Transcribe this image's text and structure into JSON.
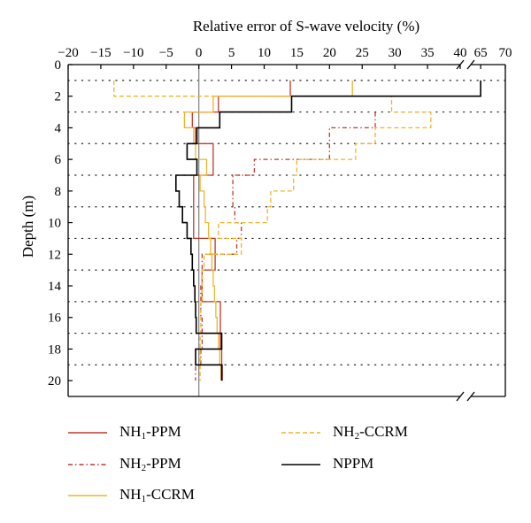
{
  "chart_data": {
    "type": "line",
    "xlabel": "Relative error of S-wave velocity (%)",
    "ylabel": "Depth (m)",
    "x_ticks_main": [
      -20,
      -15,
      -10,
      -5,
      0,
      5,
      10,
      15,
      20,
      25,
      30,
      35,
      40
    ],
    "x_ticks_break": [
      65,
      70
    ],
    "x_range_main": [
      -20,
      40
    ],
    "x_range_break": [
      63,
      70
    ],
    "y_ticks": [
      0,
      2,
      4,
      6,
      8,
      10,
      12,
      14,
      16,
      18,
      20
    ],
    "ylim": [
      0,
      21
    ],
    "vertical_reference_x": 0,
    "grid": "dotted horizontal lines at odd depths",
    "axis_break": "x-axis break between 40 and 63",
    "series": [
      {
        "name_main": "NH",
        "name_sub": "1",
        "name_tail": "-PPM",
        "color": "#c0392b",
        "dash": "solid",
        "depth_edges": [
          1,
          2,
          3,
          4,
          5,
          6,
          7,
          8,
          9,
          10,
          11,
          12,
          13,
          14,
          15,
          16,
          17,
          18,
          19,
          20
        ],
        "values": [
          14,
          3,
          -1,
          -0.5,
          2.2,
          2.2,
          -0.8,
          -0.8,
          -0.8,
          -0.8,
          2.5,
          2.5,
          0.5,
          0.5,
          3.3,
          3.3,
          3.3,
          3.5,
          3.6
        ]
      },
      {
        "name_main": "NH",
        "name_sub": "2",
        "name_tail": "-PPM",
        "color": "#c0392b",
        "dash": "dashdot",
        "depth_edges": [
          3,
          4,
          5,
          6,
          7,
          8,
          9,
          10,
          11,
          12,
          13,
          14,
          15,
          16,
          17,
          18,
          19,
          20
        ],
        "values": [
          27,
          20,
          20,
          8.5,
          5.2,
          5.2,
          5.5,
          6.5,
          5.8,
          0.5,
          0.5,
          0.3,
          0.3,
          0.5,
          0.5,
          0.3,
          -0.5
        ]
      },
      {
        "name_main": "NH",
        "name_sub": "1",
        "name_tail": "-CCRM",
        "color": "#f0b429",
        "dash": "solid",
        "depth_edges": [
          1,
          2,
          3,
          4,
          5,
          6,
          7,
          8,
          9,
          10,
          11,
          12,
          13,
          14,
          15,
          16,
          17,
          18,
          19,
          20
        ],
        "values": [
          23.5,
          2.2,
          -2.2,
          -0.8,
          -0.5,
          1.2,
          0.2,
          0.8,
          1.0,
          1.5,
          1.8,
          2.0,
          2.2,
          2.4,
          2.6,
          2.8,
          3.0,
          3.2,
          3.4
        ]
      },
      {
        "name_main": "NH",
        "name_sub": "2",
        "name_tail": "-CCRM",
        "color": "#f0b429",
        "dash": "dashed",
        "depth_edges": [
          1,
          2,
          3,
          4,
          5,
          6,
          7,
          8,
          9,
          10,
          11,
          12,
          13,
          14,
          15,
          16,
          17,
          18,
          19,
          20
        ],
        "values": [
          -13,
          29.5,
          35.5,
          27,
          24,
          15,
          14.5,
          11,
          10.5,
          3,
          6.5,
          0.8,
          0.5,
          0.5,
          0.3,
          0.3,
          0.2,
          0.2,
          0.2
        ]
      },
      {
        "name_main": "NPPM",
        "name_sub": "",
        "name_tail": "",
        "color": "#000000",
        "dash": "solid",
        "depth_edges": [
          1,
          2,
          3,
          4,
          5,
          6,
          7,
          8,
          9,
          10,
          11,
          12,
          13,
          14,
          15,
          16,
          17,
          18,
          19,
          20
        ],
        "values": [
          65,
          14.2,
          3.2,
          -0.3,
          -1.8,
          -0.3,
          -3.5,
          -3,
          -2.5,
          -1.8,
          -1.2,
          -1,
          -0.8,
          -0.6,
          -0.5,
          -0.4,
          3.5,
          -0.5,
          3.5
        ]
      }
    ]
  }
}
